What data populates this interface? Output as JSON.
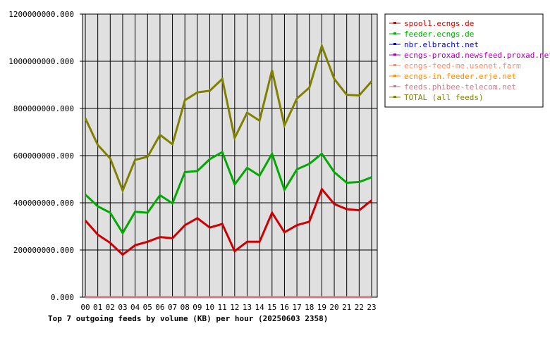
{
  "chart_data": {
    "type": "line",
    "title": "Top 7 outgoing feeds by volume (KB) per hour (20250603 2358)",
    "xlabel": "",
    "ylabel": "",
    "x": [
      "00",
      "01",
      "02",
      "03",
      "04",
      "05",
      "06",
      "07",
      "08",
      "09",
      "10",
      "11",
      "12",
      "13",
      "14",
      "15",
      "16",
      "17",
      "18",
      "19",
      "20",
      "21",
      "22",
      "23"
    ],
    "ylim": [
      0,
      1200000000
    ],
    "yticks": [
      0,
      200000000,
      400000000,
      600000000,
      800000000,
      1000000000,
      1200000000
    ],
    "ytick_labels": [
      "0.000",
      "200000000.000",
      "400000000.000",
      "600000000.000",
      "800000000.000",
      "1000000000.000",
      "1200000000.000"
    ],
    "grid": true,
    "legend_position": "right",
    "background": "#e0e0e0",
    "series": [
      {
        "name": "spool1.ecngs.de",
        "color": "#cc0000",
        "values": [
          325000000,
          265000000,
          230000000,
          180000000,
          220000000,
          235000000,
          255000000,
          250000000,
          305000000,
          335000000,
          295000000,
          310000000,
          195000000,
          235000000,
          235000000,
          358000000,
          275000000,
          305000000,
          320000000,
          458000000,
          395000000,
          373000000,
          368000000,
          410000000
        ]
      },
      {
        "name": "feeder.ecngs.de",
        "color": "#00aa00",
        "values": [
          435000000,
          385000000,
          358000000,
          272000000,
          362000000,
          358000000,
          432000000,
          398000000,
          530000000,
          535000000,
          585000000,
          615000000,
          478000000,
          548000000,
          515000000,
          608000000,
          455000000,
          542000000,
          565000000,
          608000000,
          530000000,
          485000000,
          488000000,
          508000000
        ]
      },
      {
        "name": "nbr.elbracht.net",
        "color": "#0000cc",
        "values": [
          0,
          0,
          0,
          0,
          0,
          0,
          0,
          0,
          0,
          0,
          0,
          0,
          0,
          0,
          0,
          0,
          0,
          0,
          0,
          0,
          0,
          0,
          0,
          0
        ]
      },
      {
        "name": "ecngs-proxad.newsfeed.proxad.net",
        "color": "#aa00aa",
        "values": [
          0,
          0,
          0,
          0,
          0,
          0,
          0,
          0,
          0,
          0,
          0,
          0,
          0,
          0,
          0,
          0,
          0,
          0,
          0,
          0,
          0,
          0,
          0,
          0
        ]
      },
      {
        "name": "ecngs-feed-me.usenet.farm",
        "color": "#ff8c69",
        "values": [
          0,
          0,
          0,
          0,
          0,
          0,
          0,
          0,
          0,
          0,
          0,
          0,
          0,
          0,
          0,
          0,
          0,
          0,
          0,
          0,
          0,
          0,
          0,
          0
        ]
      },
      {
        "name": "ecngs-in.feeder.erje.net",
        "color": "#ff8c00",
        "values": [
          0,
          0,
          0,
          0,
          0,
          0,
          0,
          0,
          0,
          0,
          0,
          0,
          0,
          0,
          0,
          0,
          0,
          0,
          0,
          0,
          0,
          0,
          0,
          0
        ]
      },
      {
        "name": "feeds.phibee-telecom.net",
        "color": "#cc7a8a",
        "values": [
          0,
          0,
          0,
          0,
          0,
          0,
          0,
          0,
          0,
          0,
          0,
          0,
          0,
          0,
          0,
          0,
          0,
          0,
          0,
          0,
          0,
          0,
          0,
          0
        ]
      },
      {
        "name": "TOTAL (all feeds)",
        "color": "#808000",
        "values": [
          758000000,
          645000000,
          588000000,
          452000000,
          582000000,
          595000000,
          688000000,
          648000000,
          835000000,
          868000000,
          875000000,
          925000000,
          675000000,
          782000000,
          748000000,
          962000000,
          728000000,
          842000000,
          888000000,
          1065000000,
          925000000,
          858000000,
          855000000,
          915000000
        ]
      }
    ]
  }
}
